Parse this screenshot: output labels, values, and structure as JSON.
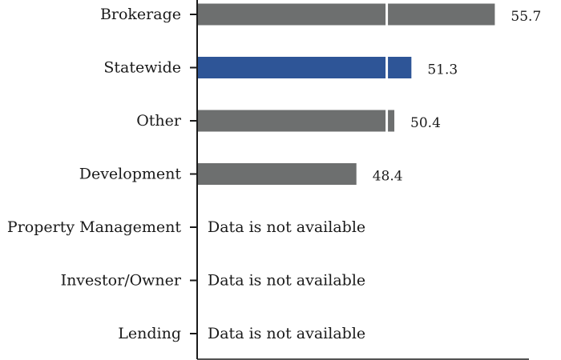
{
  "chart_data": {
    "type": "bar",
    "orientation": "horizontal",
    "categories": [
      "Brokerage",
      "Statewide",
      "Other",
      "Development",
      "Property Management",
      "Investor/Owner",
      "Lending"
    ],
    "values": [
      55.7,
      51.3,
      50.4,
      48.4,
      null,
      null,
      null
    ],
    "value_labels": [
      "55.7",
      "51.3",
      "50.4",
      "48.4",
      null,
      null,
      null
    ],
    "highlight_category": "Statewide",
    "na_text": "Data is not available",
    "reference_value": 50,
    "xlim": [
      40,
      57.5
    ],
    "grid": false,
    "colors": {
      "bar": "#6d6f6f",
      "highlight": "#2e5597",
      "axis": "#1a1a1a",
      "reference_line": "#ffffff"
    }
  }
}
